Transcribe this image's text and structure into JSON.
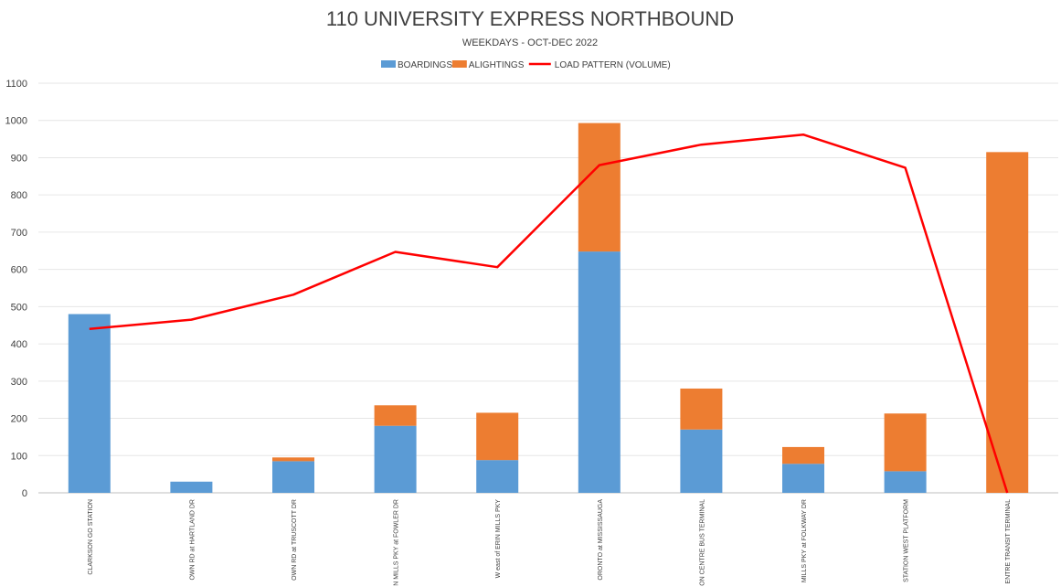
{
  "chart_data": {
    "type": "bar",
    "stacked": true,
    "title": "110 UNIVERSITY EXPRESS NORTHBOUND",
    "subtitle": "WEEKDAYS - OCT-DEC 2022",
    "xlabel": "",
    "ylabel": "",
    "ylim": [
      0,
      1100
    ],
    "yticks": [
      0,
      100,
      200,
      300,
      400,
      500,
      600,
      700,
      800,
      900,
      1000,
      1100
    ],
    "grid": true,
    "legend_position": "top",
    "categories": [
      "CLARKSON GO STATION",
      "OWN RD at HARTLAND DR",
      "OWN RD at TRUSCOTT DR",
      "N MILLS PKY at FOWLER DR",
      "W east of ERIN MILLS PKY",
      "ORONTO at MISSISSAUGA",
      "ON CENTRE BUS TERMINAL",
      "MILLS PKY at FOLKWAY DR",
      "STATION WEST PLATFORM",
      "ENTRE TRANSIT TERMINAL"
    ],
    "series": [
      {
        "name": "BOARDINGS",
        "kind": "bar",
        "color": "#5b9bd5",
        "values": [
          480,
          30,
          85,
          180,
          88,
          648,
          170,
          78,
          58,
          0
        ]
      },
      {
        "name": "ALIGHTINGS",
        "kind": "bar",
        "color": "#ed7d31",
        "values": [
          0,
          0,
          10,
          55,
          127,
          345,
          110,
          45,
          155,
          915
        ]
      },
      {
        "name": "LOAD PATTERN (VOLUME)",
        "kind": "line",
        "color": "#ff0000",
        "values": [
          440,
          465,
          532,
          647,
          606,
          880,
          935,
          962,
          873,
          0
        ]
      }
    ]
  }
}
